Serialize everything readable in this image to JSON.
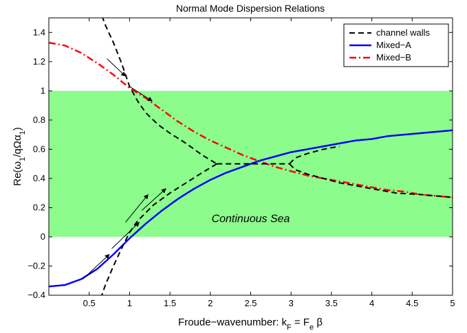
{
  "chart_data": {
    "type": "line",
    "title": "Normal Mode Dispersion Relations",
    "xlabel": "Froude−wavenumber: k",
    "xlabel_sub": "F",
    "xlabel_mid": " = F",
    "xlabel_sub2": "e",
    "xlabel_end": " β",
    "ylabel_parts": [
      "Re(ω",
      "1",
      "/qΩα",
      "1",
      ")"
    ],
    "xlim": [
      0,
      5
    ],
    "ylim": [
      -0.4,
      1.5
    ],
    "x_ticks": [
      0.5,
      1,
      1.5,
      2,
      2.5,
      3,
      3.5,
      4,
      4.5,
      5
    ],
    "x_tick_labels": [
      "0.5",
      "1",
      "1.5",
      "2",
      "2.5",
      "3",
      "3.5",
      "4",
      "4.5",
      "5"
    ],
    "y_ticks": [
      -0.4,
      -0.2,
      0,
      0.2,
      0.4,
      0.6,
      0.8,
      1,
      1.2,
      1.4
    ],
    "y_tick_labels": [
      "−0.4",
      "−0.2",
      "0",
      "0.2",
      "0.4",
      "0.6",
      "0.8",
      "1",
      "1.2",
      "1.4"
    ],
    "grid": false,
    "legend_position": "top-right",
    "band": {
      "y0": 0,
      "y1": 1,
      "color": "#8cfc8c",
      "label": "Continuous Sea"
    },
    "series": [
      {
        "name": "channel walls",
        "color": "#000000",
        "style": "dashed",
        "segments": [
          {
            "x": [
              0.62,
              0.7,
              0.8,
              0.9,
              1.0,
              1.1,
              1.2,
              1.35,
              1.5,
              1.7,
              1.9,
              2.02,
              2.08
            ],
            "y": [
              1.57,
              1.45,
              1.33,
              1.19,
              1.03,
              0.93,
              0.85,
              0.77,
              0.71,
              0.64,
              0.56,
              0.52,
              0.5
            ]
          },
          {
            "x": [
              2.08,
              2.98
            ],
            "y": [
              0.5,
              0.5
            ]
          },
          {
            "x": [
              2.98,
              3.05,
              3.2,
              3.4,
              3.6,
              3.8,
              4.0,
              4.3,
              4.6,
              5.0
            ],
            "y": [
              0.5,
              0.46,
              0.43,
              0.4,
              0.37,
              0.35,
              0.33,
              0.3,
              0.29,
              0.27
            ]
          },
          {
            "x": [
              2.08,
              2.02,
              1.9,
              1.7,
              1.5,
              1.3,
              1.1,
              1.0,
              0.9,
              0.8,
              0.7,
              0.65
            ],
            "y": [
              0.5,
              0.48,
              0.44,
              0.37,
              0.3,
              0.22,
              0.11,
              0.03,
              -0.08,
              -0.2,
              -0.33,
              -0.41
            ]
          },
          {
            "x": [
              2.98,
              3.05,
              3.2,
              3.4,
              3.6
            ],
            "y": [
              0.5,
              0.54,
              0.57,
              0.6,
              0.62
            ]
          }
        ]
      },
      {
        "name": "Mixed−A",
        "color": "#0000ff",
        "style": "solid",
        "x": [
          0.0,
          0.2,
          0.4,
          0.6,
          0.8,
          1.0,
          1.2,
          1.4,
          1.6,
          1.8,
          2.0,
          2.2,
          2.4,
          2.6,
          2.8,
          3.0,
          3.2,
          3.4,
          3.6,
          3.8,
          4.0,
          4.2,
          4.4,
          4.6,
          4.8,
          5.0
        ],
        "y": [
          -0.34,
          -0.33,
          -0.29,
          -0.22,
          -0.12,
          -0.01,
          0.09,
          0.18,
          0.26,
          0.33,
          0.39,
          0.44,
          0.48,
          0.52,
          0.55,
          0.58,
          0.6,
          0.62,
          0.64,
          0.66,
          0.67,
          0.69,
          0.7,
          0.71,
          0.72,
          0.73
        ]
      },
      {
        "name": "Mixed−B",
        "color": "#ff0000",
        "style": "dashdot",
        "x": [
          0.0,
          0.2,
          0.4,
          0.6,
          0.8,
          1.0,
          1.2,
          1.4,
          1.6,
          1.8,
          2.0,
          2.2,
          2.4,
          2.6,
          2.8,
          3.0,
          3.2,
          3.4,
          3.6,
          3.8,
          4.0,
          4.2,
          4.4,
          4.6,
          4.8,
          5.0
        ],
        "y": [
          1.33,
          1.31,
          1.26,
          1.19,
          1.11,
          1.02,
          0.95,
          0.87,
          0.79,
          0.72,
          0.66,
          0.61,
          0.56,
          0.52,
          0.48,
          0.45,
          0.42,
          0.4,
          0.38,
          0.36,
          0.34,
          0.32,
          0.31,
          0.29,
          0.28,
          0.27
        ]
      }
    ],
    "arrows": [
      {
        "from": [
          0.72,
          1.22
        ],
        "to": [
          0.95,
          1.1
        ]
      },
      {
        "from": [
          1.0,
          1.03
        ],
        "to": [
          1.28,
          0.93
        ]
      },
      {
        "from": [
          0.42,
          -0.29
        ],
        "to": [
          0.75,
          -0.12
        ]
      },
      {
        "from": [
          0.78,
          -0.08
        ],
        "to": [
          1.12,
          0.1
        ]
      },
      {
        "from": [
          0.95,
          0.1
        ],
        "to": [
          1.23,
          0.29
        ]
      },
      {
        "from": [
          1.15,
          0.18
        ],
        "to": [
          1.45,
          0.33
        ]
      }
    ]
  }
}
